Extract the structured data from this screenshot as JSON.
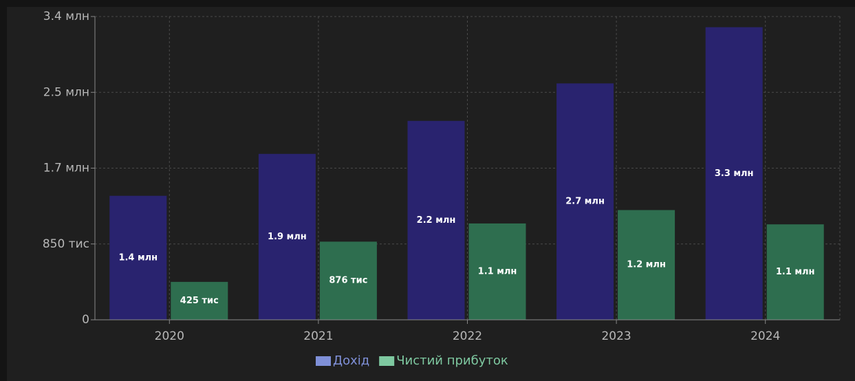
{
  "chart_data": {
    "type": "bar",
    "categories": [
      "2020",
      "2021",
      "2022",
      "2023",
      "2024"
    ],
    "series": [
      {
        "name": "Дохід",
        "color": "#29236f",
        "legend_color": "#7f90d8",
        "values": [
          1390000,
          1860000,
          2230000,
          2650000,
          3280000
        ],
        "value_labels": [
          "1.4 млн",
          "1.9 млн",
          "2.2 млн",
          "2.7 млн",
          "3.3 млн"
        ]
      },
      {
        "name": "Чистий прибуток",
        "color": "#2e6e4f",
        "legend_color": "#7ec8a0",
        "values": [
          425000,
          876000,
          1080000,
          1230000,
          1070000
        ],
        "value_labels": [
          "425 тис",
          "876 тис",
          "1.1 млн",
          "1.2 млн",
          "1.1 млн"
        ]
      }
    ],
    "ylim": [
      0,
      3400000
    ],
    "yticks": [
      0,
      {
        "value": 850000,
        "label": "850 тис"
      },
      {
        "value": 1700000,
        "label": "1.7 млн"
      },
      {
        "value": 2550000,
        "label": "2.5 млн"
      },
      {
        "value": 3400000,
        "label": "3.4 млн"
      }
    ],
    "grid": true,
    "legend": "bottom"
  }
}
